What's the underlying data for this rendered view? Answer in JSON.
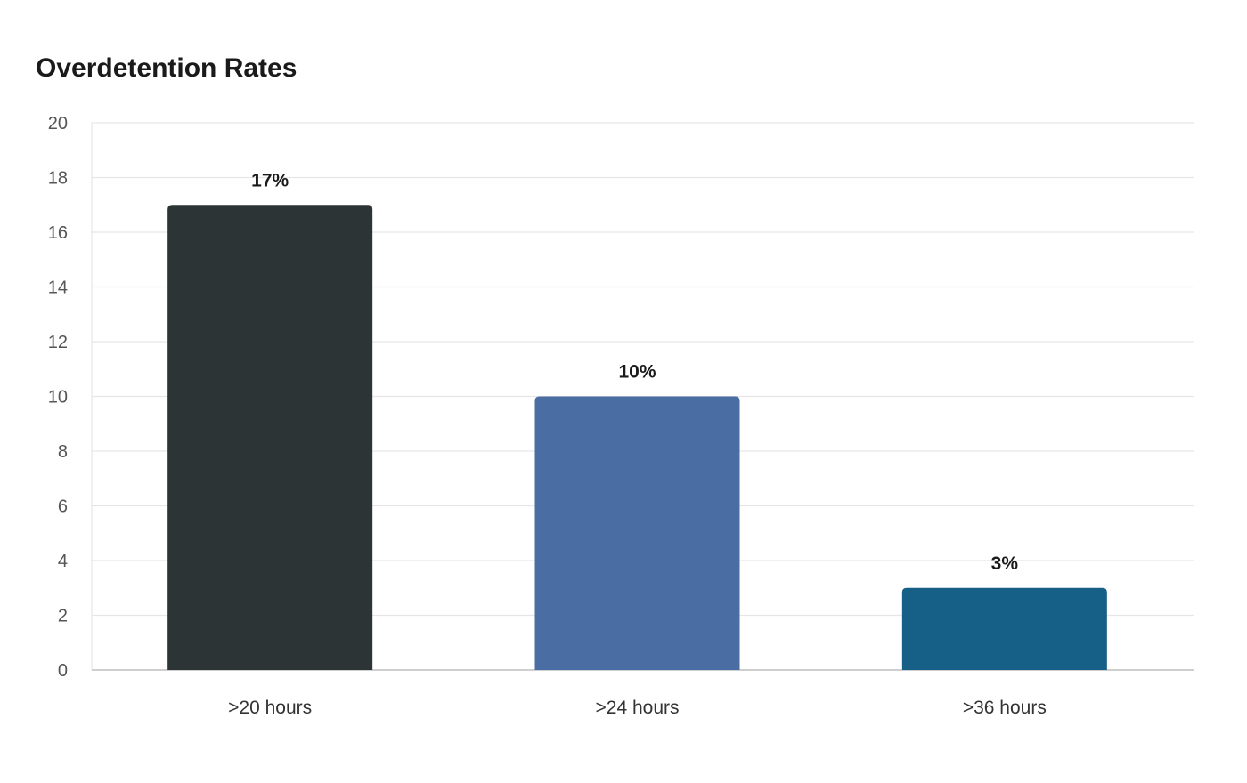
{
  "chart_data": {
    "type": "bar",
    "title": "Overdetention Rates",
    "xlabel": "",
    "ylabel": "",
    "categories": [
      ">20 hours",
      ">24 hours",
      ">36 hours"
    ],
    "values": [
      17,
      10,
      3
    ],
    "data_labels": [
      "17%",
      "10%",
      "3%"
    ],
    "colors": [
      "#2d3436",
      "#4a6ea4",
      "#165f86"
    ],
    "ylim": [
      0,
      20
    ],
    "yticks": [
      0,
      2,
      4,
      6,
      8,
      10,
      12,
      14,
      16,
      18,
      20
    ],
    "grid": true,
    "legend": "none"
  }
}
